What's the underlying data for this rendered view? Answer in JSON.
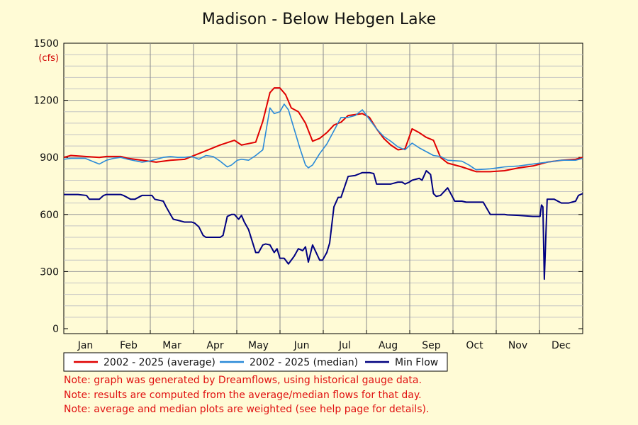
{
  "chart_data": {
    "type": "line",
    "title": "Madison - Below Hebgen Lake",
    "ylabel": "(cfs)",
    "xlabel": "",
    "ylim": [
      0,
      1500
    ],
    "yticks": [
      "0",
      "300",
      "600",
      "900",
      "1200",
      "1500"
    ],
    "ytick_values": [
      0,
      300,
      600,
      900,
      1200,
      1500
    ],
    "xlim": [
      0,
      365
    ],
    "months": [
      "Jan",
      "Feb",
      "Mar",
      "Apr",
      "May",
      "Jun",
      "Jul",
      "Aug",
      "Sep",
      "Oct",
      "Nov",
      "Dec"
    ],
    "grid": true,
    "legend_position": "bottom",
    "series": [
      {
        "name": "2002 - 2025 (average)",
        "color": "#e00000",
        "x": [
          0,
          5,
          15,
          25,
          30,
          40,
          45,
          55,
          60,
          65,
          75,
          85,
          90,
          100,
          110,
          120,
          125,
          135,
          140,
          145,
          148,
          152,
          156,
          160,
          165,
          170,
          175,
          180,
          185,
          190,
          195,
          200,
          210,
          215,
          220,
          225,
          230,
          235,
          240,
          245,
          250,
          255,
          260,
          265,
          270,
          280,
          290,
          300,
          310,
          320,
          330,
          340,
          350,
          360,
          365
        ],
        "y": [
          900,
          910,
          905,
          900,
          905,
          905,
          895,
          885,
          880,
          875,
          885,
          890,
          905,
          935,
          965,
          990,
          965,
          980,
          1090,
          1240,
          1265,
          1265,
          1230,
          1160,
          1140,
          1080,
          985,
          1000,
          1030,
          1070,
          1085,
          1120,
          1130,
          1110,
          1050,
          1000,
          965,
          940,
          945,
          1050,
          1030,
          1005,
          990,
          900,
          870,
          850,
          825,
          825,
          830,
          845,
          855,
          875,
          885,
          890,
          900
        ]
      },
      {
        "name": "2002 - 2025 (median)",
        "color": "#2a8ad8",
        "x": [
          0,
          5,
          15,
          20,
          25,
          30,
          35,
          40,
          45,
          55,
          60,
          65,
          70,
          75,
          80,
          85,
          90,
          95,
          100,
          105,
          110,
          115,
          118,
          122,
          125,
          130,
          135,
          140,
          145,
          148,
          152,
          155,
          158,
          162,
          166,
          170,
          172,
          175,
          180,
          185,
          190,
          195,
          200,
          205,
          210,
          215,
          220,
          225,
          230,
          235,
          240,
          245,
          250,
          255,
          260,
          265,
          270,
          280,
          285,
          290,
          300,
          310,
          320,
          330,
          340,
          350,
          360,
          365
        ],
        "y": [
          890,
          895,
          895,
          880,
          865,
          885,
          895,
          900,
          890,
          875,
          880,
          890,
          900,
          905,
          900,
          900,
          905,
          890,
          910,
          905,
          880,
          850,
          860,
          885,
          890,
          885,
          910,
          940,
          1160,
          1130,
          1140,
          1180,
          1150,
          1050,
          950,
          860,
          845,
          860,
          920,
          970,
          1040,
          1110,
          1110,
          1120,
          1150,
          1100,
          1050,
          1010,
          985,
          955,
          940,
          975,
          950,
          930,
          910,
          905,
          885,
          880,
          860,
          835,
          840,
          850,
          855,
          865,
          875,
          885,
          885,
          895
        ]
      },
      {
        "name": "Min Flow",
        "color": "#000080",
        "x": [
          0,
          10,
          16,
          18,
          25,
          28,
          30,
          40,
          42,
          47,
          50,
          55,
          62,
          64,
          70,
          72,
          75,
          77,
          80,
          85,
          90,
          92,
          95,
          98,
          100,
          105,
          110,
          112,
          115,
          118,
          120,
          123,
          125,
          127,
          130,
          135,
          137,
          140,
          142,
          145,
          148,
          150,
          152,
          155,
          158,
          160,
          162,
          165,
          168,
          170,
          172,
          175,
          180,
          182,
          185,
          187,
          190,
          193,
          195,
          200,
          205,
          210,
          212,
          215,
          218,
          220,
          225,
          230,
          235,
          238,
          240,
          243,
          245,
          250,
          252,
          255,
          258,
          260,
          262,
          265,
          270,
          275,
          280,
          283,
          285,
          295,
          300,
          305,
          310,
          312,
          320,
          330,
          332,
          335,
          336,
          337,
          338,
          340,
          345,
          350,
          355,
          360,
          362,
          365
        ],
        "y": [
          705,
          705,
          700,
          680,
          680,
          700,
          705,
          705,
          700,
          680,
          680,
          700,
          700,
          680,
          670,
          640,
          600,
          575,
          570,
          560,
          560,
          555,
          535,
          490,
          480,
          480,
          480,
          490,
          590,
          600,
          600,
          575,
          595,
          560,
          520,
          400,
          400,
          440,
          445,
          440,
          400,
          420,
          370,
          370,
          340,
          360,
          380,
          420,
          410,
          430,
          350,
          440,
          360,
          360,
          400,
          450,
          640,
          690,
          690,
          800,
          805,
          820,
          820,
          820,
          815,
          760,
          760,
          760,
          770,
          770,
          760,
          770,
          780,
          790,
          780,
          830,
          810,
          710,
          695,
          700,
          740,
          670,
          670,
          665,
          665,
          665,
          600,
          600,
          600,
          598,
          595,
          590,
          590,
          590,
          650,
          640,
          260,
          680,
          680,
          660,
          660,
          670,
          700,
          710
        ]
      }
    ],
    "notes": [
      "Note: graph was generated by Dreamflows, using historical gauge data.",
      "Note: results are computed from the average/median flows for that day.",
      "Note: average and median plots are weighted (see help page for details)."
    ]
  }
}
